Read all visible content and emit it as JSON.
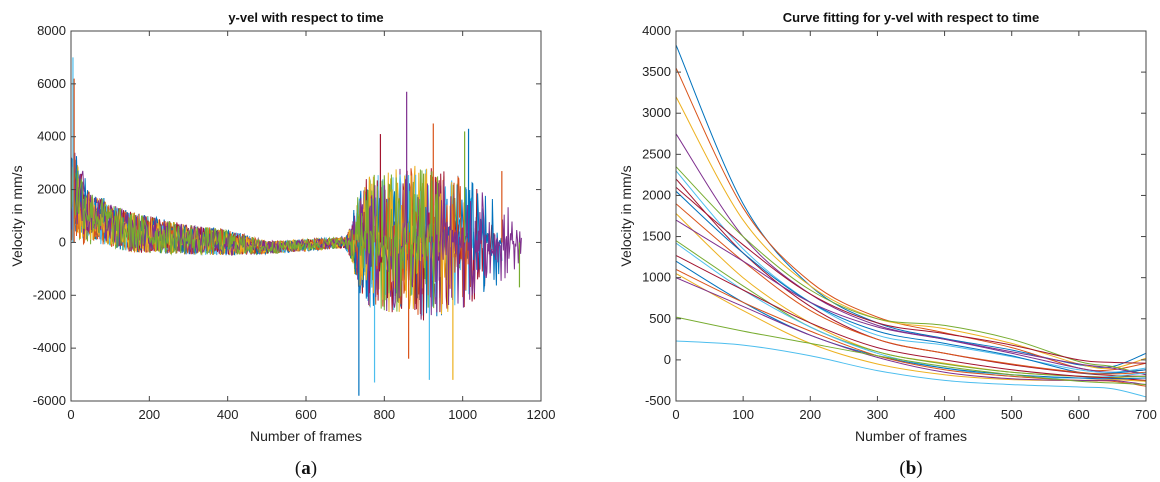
{
  "colors": [
    "#0072BD",
    "#D95319",
    "#EDB120",
    "#7E2F8E",
    "#77AC30",
    "#4DBEEE",
    "#A2142F"
  ],
  "chart_data": [
    {
      "type": "line",
      "title": "y-vel with respect to time",
      "xlabel": "Number of frames",
      "ylabel": "Velocity in mm/s",
      "xlim": [
        0,
        1200
      ],
      "ylim": [
        -6000,
        8000
      ],
      "xticks": [
        0,
        200,
        400,
        600,
        800,
        1000,
        1200
      ],
      "yticks": [
        -6000,
        -4000,
        -2000,
        0,
        2000,
        4000,
        6000,
        8000
      ],
      "grid": false,
      "panel_label": {
        "open": "(",
        "letter": "a",
        "close": ")"
      },
      "series_count": 12,
      "series_profile": [
        {
          "x": 0,
          "center": 1800,
          "spread": 2200
        },
        {
          "x": 50,
          "center": 900,
          "spread": 1200
        },
        {
          "x": 150,
          "center": 400,
          "spread": 1100
        },
        {
          "x": 300,
          "center": 100,
          "spread": 800
        },
        {
          "x": 400,
          "center": 0,
          "spread": 700
        },
        {
          "x": 500,
          "center": -200,
          "spread": 350
        },
        {
          "x": 700,
          "center": 0,
          "spread": 300
        },
        {
          "x": 750,
          "center": 0,
          "spread": 2500
        },
        {
          "x": 900,
          "center": 0,
          "spread": 3000
        },
        {
          "x": 1000,
          "center": 0,
          "spread": 2500
        },
        {
          "x": 1150,
          "center": 0,
          "spread": 1000
        }
      ],
      "series_end_frames": [
        760,
        850,
        900,
        950,
        1000,
        1040,
        1080,
        1100,
        1020,
        980,
        1150,
        940
      ],
      "peaks": [
        {
          "x": 5,
          "y": 7000
        },
        {
          "x": 8,
          "y": 6200
        },
        {
          "x": 735,
          "y": -5800
        },
        {
          "x": 775,
          "y": -5300
        },
        {
          "x": 790,
          "y": 4100
        },
        {
          "x": 857,
          "y": 5700
        },
        {
          "x": 862,
          "y": -4400
        },
        {
          "x": 915,
          "y": -5200
        },
        {
          "x": 925,
          "y": 4500
        },
        {
          "x": 975,
          "y": -5200
        },
        {
          "x": 1005,
          "y": 4200
        },
        {
          "x": 1015,
          "y": 4300
        },
        {
          "x": 1100,
          "y": 2700
        },
        {
          "x": 1145,
          "y": -1700
        }
      ]
    },
    {
      "type": "line",
      "title": "Curve fitting for y-vel with respect to time",
      "xlabel": "Number of frames",
      "ylabel": "Velocity in mm/s",
      "xlim": [
        0,
        700
      ],
      "ylim": [
        -500,
        4000
      ],
      "xticks": [
        0,
        100,
        200,
        300,
        400,
        500,
        600,
        700
      ],
      "yticks": [
        -500,
        0,
        500,
        1000,
        1500,
        2000,
        2500,
        3000,
        3500,
        4000
      ],
      "grid": false,
      "panel_label": {
        "open": "(",
        "letter": "b",
        "close": ")"
      },
      "x": [
        0,
        100,
        200,
        300,
        400,
        500,
        600,
        650,
        700
      ],
      "series": [
        {
          "values": [
            3830,
            1900,
            900,
            450,
            260,
            120,
            -60,
            -80,
            80
          ]
        },
        {
          "values": [
            3550,
            1850,
            950,
            520,
            330,
            150,
            -100,
            -120,
            -40
          ]
        },
        {
          "values": [
            3200,
            1700,
            900,
            500,
            380,
            200,
            -50,
            -100,
            20
          ]
        },
        {
          "values": [
            2750,
            1500,
            800,
            420,
            250,
            80,
            -100,
            -150,
            -120
          ]
        },
        {
          "values": [
            2350,
            1500,
            850,
            500,
            420,
            250,
            -20,
            -80,
            -180
          ]
        },
        {
          "values": [
            2300,
            1350,
            700,
            300,
            180,
            40,
            -120,
            -150,
            -100
          ]
        },
        {
          "values": [
            2200,
            1300,
            650,
            250,
            80,
            -60,
            -160,
            -190,
            -200
          ]
        },
        {
          "values": [
            2050,
            1300,
            700,
            350,
            200,
            50,
            -150,
            -160,
            -120
          ]
        },
        {
          "values": [
            1900,
            1200,
            600,
            250,
            80,
            -50,
            -150,
            -170,
            -150
          ]
        },
        {
          "values": [
            1780,
            1000,
            450,
            100,
            -40,
            -150,
            -200,
            -210,
            -260
          ]
        },
        {
          "values": [
            1700,
            1200,
            700,
            400,
            250,
            100,
            -50,
            -100,
            -180
          ]
        },
        {
          "values": [
            1450,
            900,
            400,
            100,
            -50,
            -150,
            -200,
            -210,
            -200
          ]
        },
        {
          "values": [
            1420,
            850,
            400,
            80,
            -100,
            -200,
            -220,
            -200,
            -160
          ]
        },
        {
          "values": [
            1270,
            850,
            450,
            150,
            0,
            -120,
            -200,
            -220,
            -250
          ]
        },
        {
          "values": [
            1200,
            700,
            300,
            50,
            -100,
            -180,
            -220,
            -230,
            -220
          ]
        },
        {
          "values": [
            1100,
            700,
            350,
            50,
            -120,
            -200,
            -250,
            -260,
            -320
          ]
        },
        {
          "values": [
            1050,
            600,
            200,
            -50,
            -180,
            -240,
            -250,
            -240,
            -260
          ]
        },
        {
          "values": [
            1000,
            650,
            300,
            30,
            -150,
            -230,
            -250,
            -250,
            -300
          ]
        },
        {
          "values": [
            520,
            350,
            200,
            50,
            -80,
            -180,
            -260,
            -280,
            -300
          ]
        },
        {
          "values": [
            230,
            180,
            50,
            -130,
            -250,
            -300,
            -330,
            -350,
            -450
          ]
        },
        {
          "values": [
            2100,
            1400,
            800,
            450,
            320,
            180,
            0,
            -30,
            -40
          ]
        }
      ]
    }
  ]
}
